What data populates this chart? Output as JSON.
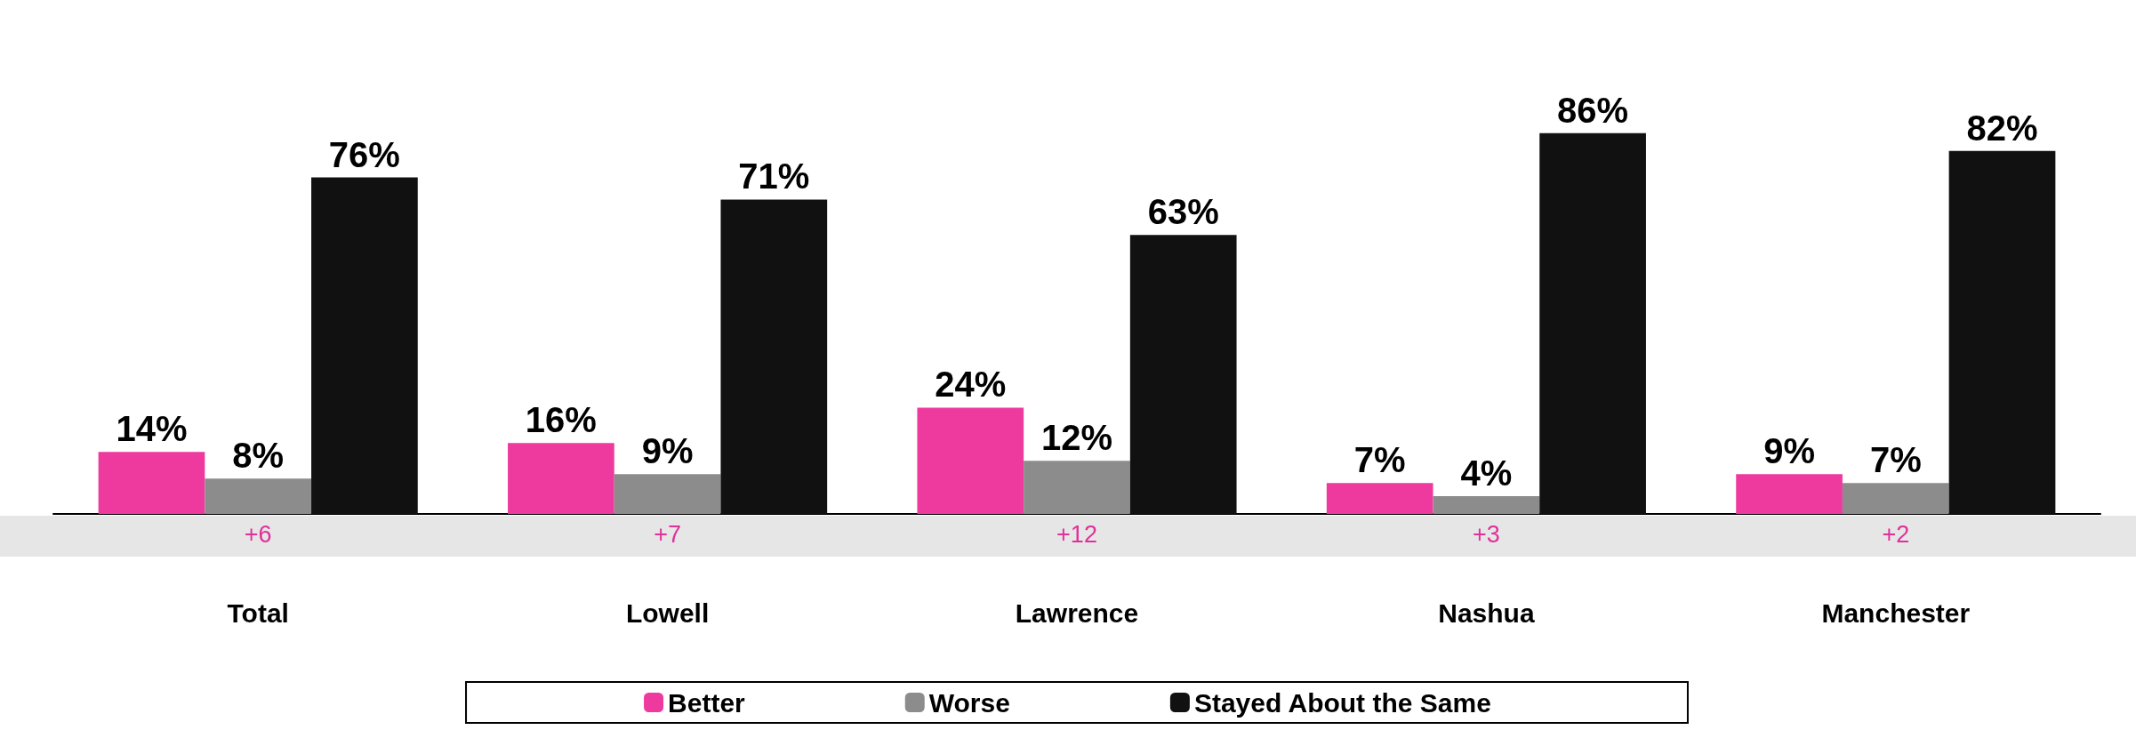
{
  "chart_data": {
    "type": "bar",
    "categories": [
      "Total",
      "Lowell",
      "Lawrence",
      "Nashua",
      "Manchester"
    ],
    "series": [
      {
        "name": "Better",
        "color": "#ee3a9f",
        "values": [
          14,
          16,
          24,
          7,
          9
        ],
        "value_labels": [
          "14%",
          "16%",
          "24%",
          "7%",
          "9%"
        ]
      },
      {
        "name": "Worse",
        "color": "#8c8c8c",
        "values": [
          8,
          9,
          12,
          4,
          7
        ],
        "value_labels": [
          "8%",
          "9%",
          "12%",
          "4%",
          "7%"
        ]
      },
      {
        "name": "Stayed About the Same",
        "color": "#111111",
        "values": [
          76,
          71,
          63,
          86,
          82
        ],
        "value_labels": [
          "76%",
          "71%",
          "63%",
          "86%",
          "82%"
        ]
      }
    ],
    "legend": "bottom",
    "tick_labels": "x",
    "annotations": [
      "+6",
      "+7",
      "+12",
      "+3",
      "+2"
    ]
  }
}
